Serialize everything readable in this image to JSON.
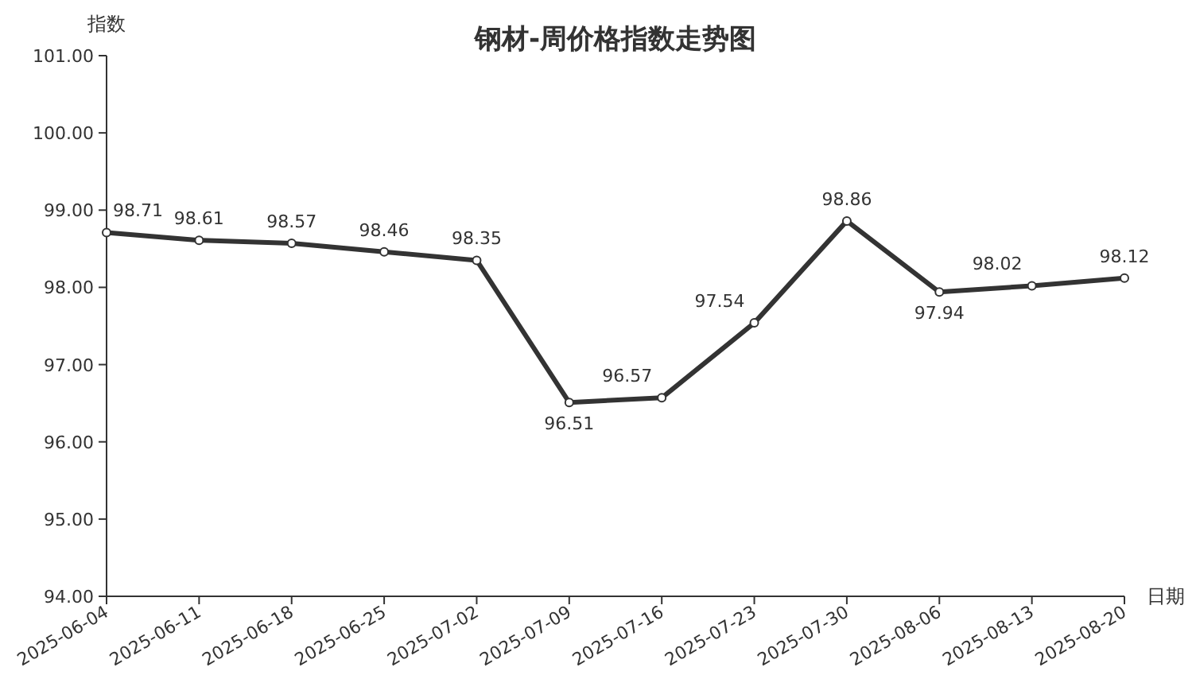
{
  "chart_data": {
    "type": "line",
    "title": "钢材-周价格指数走势图",
    "ylabel": "指数",
    "xlabel": "日期",
    "categories": [
      "2025-06-04",
      "2025-06-11",
      "2025-06-18",
      "2025-06-25",
      "2025-07-02",
      "2025-07-09",
      "2025-07-16",
      "2025-07-23",
      "2025-07-30",
      "2025-08-06",
      "2025-08-13",
      "2025-08-20"
    ],
    "values": [
      98.71,
      98.61,
      98.57,
      98.46,
      98.35,
      96.51,
      96.57,
      97.54,
      98.86,
      97.94,
      98.02,
      98.12
    ],
    "color": "#333333",
    "marker": "circle",
    "data_labels": true,
    "ylim": [
      94,
      101
    ],
    "yticks": [
      {
        "value": 94,
        "label": "94.00"
      },
      {
        "value": 95,
        "label": "95.00"
      },
      {
        "value": 96,
        "label": "96.00"
      },
      {
        "value": 97,
        "label": "97.00"
      },
      {
        "value": 98,
        "label": "98.00"
      },
      {
        "value": 99,
        "label": "99.00"
      },
      {
        "value": 100,
        "label": "100.00"
      },
      {
        "value": 101,
        "label": "101.00"
      }
    ]
  }
}
